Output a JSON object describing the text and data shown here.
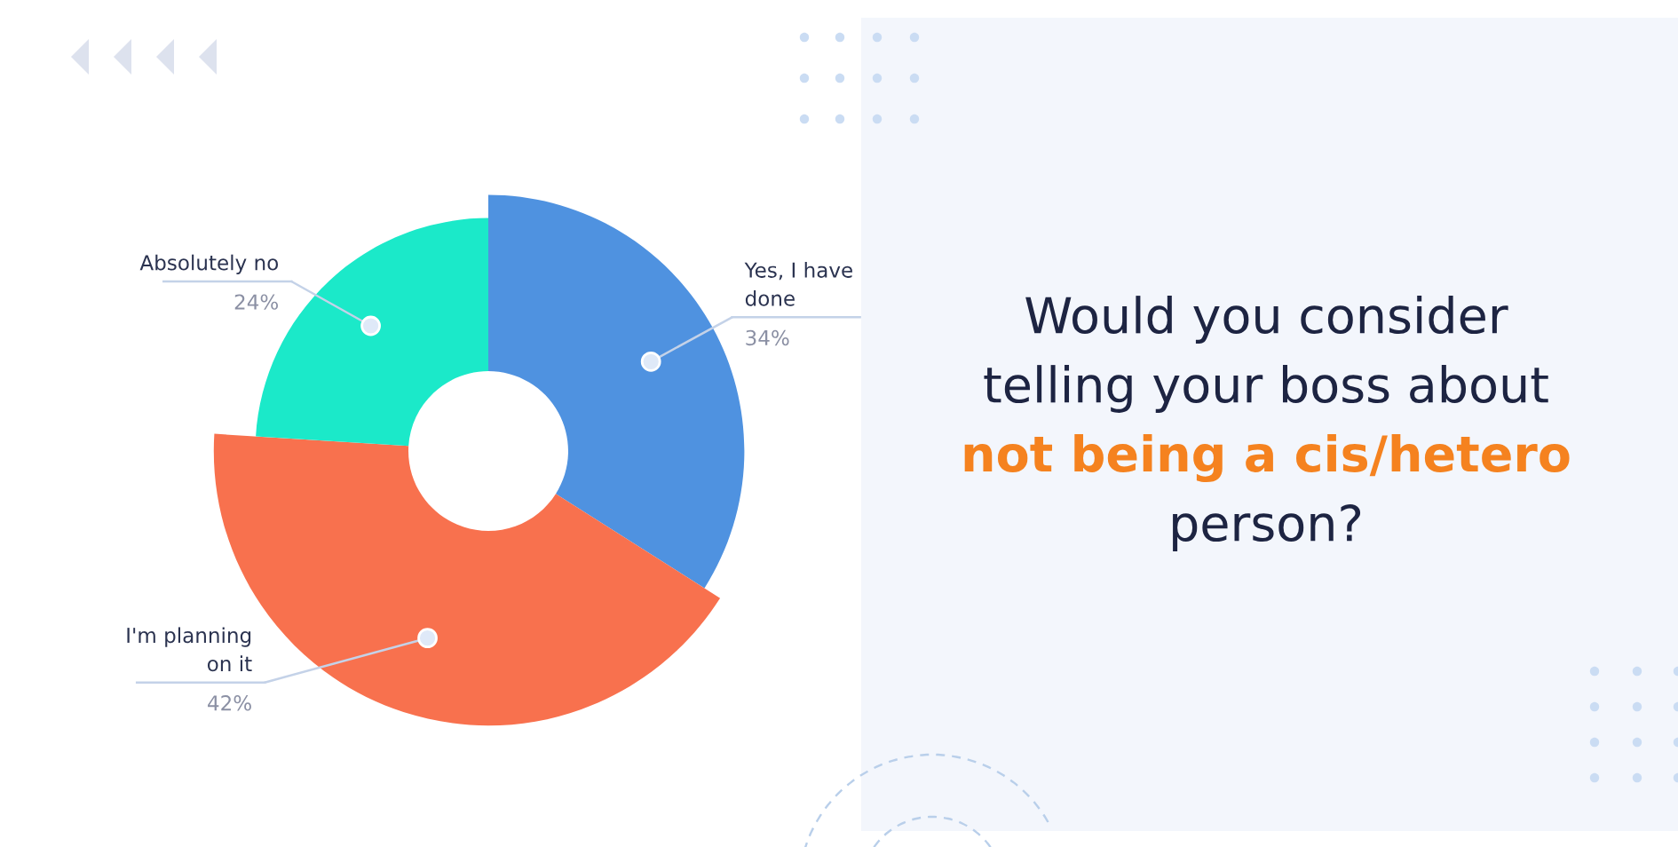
{
  "chart_data": {
    "type": "donut",
    "title": "Would you consider\ntelling your boss about\nnot being a cis/hetero\nperson?",
    "categories": [
      "Yes, I have\ndone",
      "I'm planning\non it",
      "Absolutely no"
    ],
    "values": [
      34,
      42,
      24
    ],
    "colors": [
      "#4f92e0",
      "#f8714e",
      "#1be9c9"
    ],
    "value_labels": [
      "34%",
      "42%",
      "24%"
    ]
  }
}
